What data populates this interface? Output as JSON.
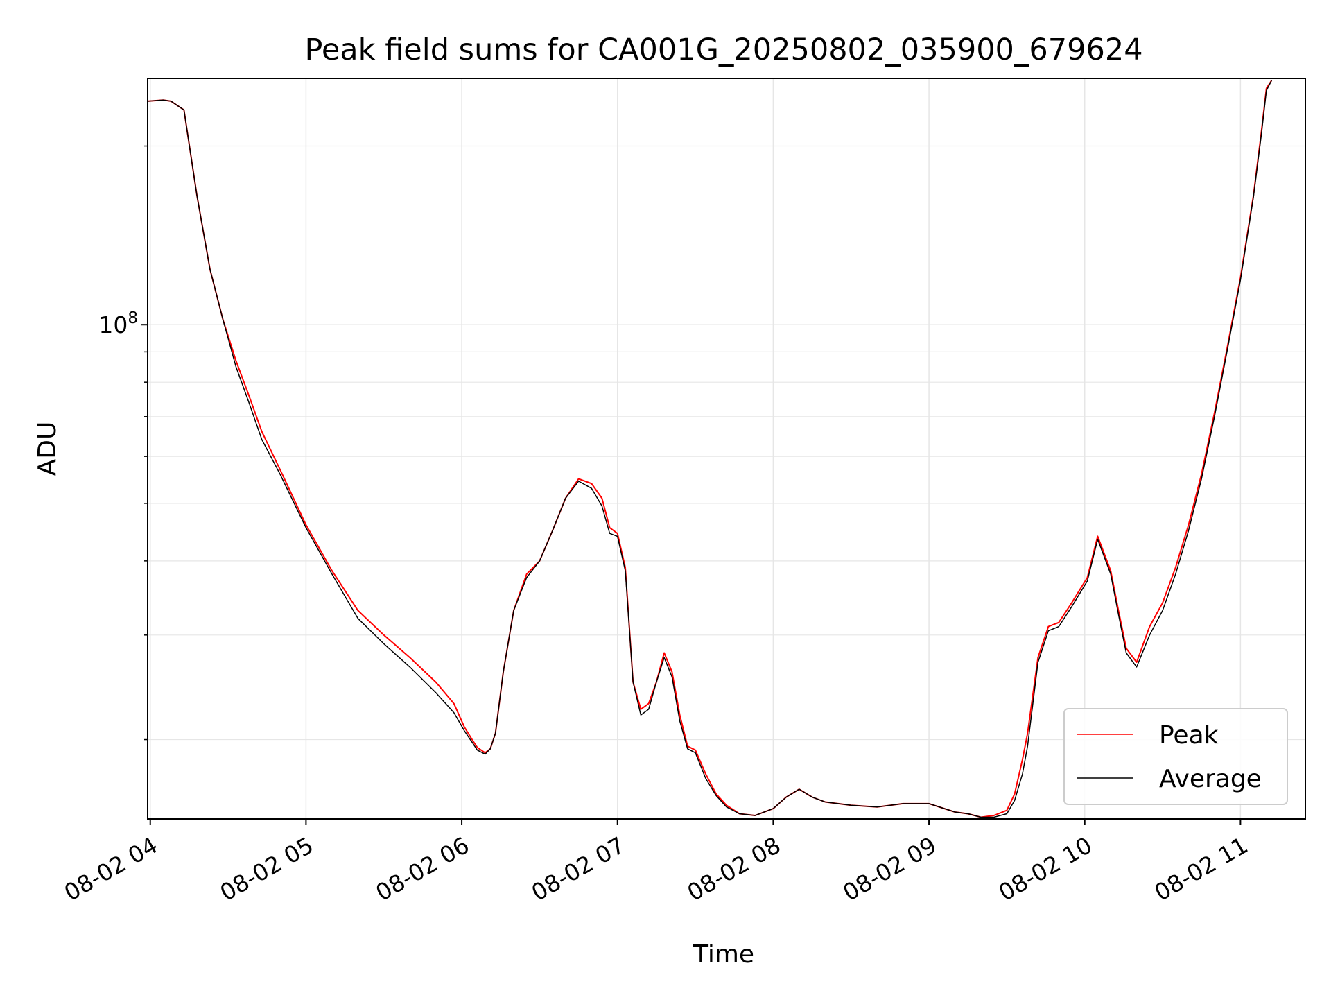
{
  "chart_data": {
    "type": "line",
    "title": "Peak field sums for CA001G_20250802_035900_679624",
    "xlabel": "Time",
    "ylabel": "ADU",
    "x_ticks": [
      "08-02 04",
      "08-02 05",
      "08-02 06",
      "08-02 07",
      "08-02 08",
      "08-02 09",
      "08-02 10",
      "08-02 11"
    ],
    "y_scale": "log",
    "y_ticks": [
      {
        "value": 100000000,
        "base": "10",
        "exp": "8"
      }
    ],
    "xlim": [
      "2025-08-02 03:59",
      "2025-08-02 11:25"
    ],
    "ylim": [
      14700000,
      260000000
    ],
    "grid": true,
    "legend": {
      "position": "lower right"
    },
    "colors": {
      "Peak": "#ff0000",
      "Average": "#000000",
      "grid": "#e6e6e6"
    },
    "series": [
      {
        "name": "Peak",
        "color": "#ff0000",
        "x": [
          "2025-08-02 03:59",
          "2025-08-02 04:05",
          "2025-08-02 04:08",
          "2025-08-02 04:13",
          "2025-08-02 04:18",
          "2025-08-02 04:23",
          "2025-08-02 04:28",
          "2025-08-02 04:33",
          "2025-08-02 04:38",
          "2025-08-02 04:43",
          "2025-08-02 04:50",
          "2025-08-02 05:00",
          "2025-08-02 05:10",
          "2025-08-02 05:20",
          "2025-08-02 05:30",
          "2025-08-02 05:40",
          "2025-08-02 05:50",
          "2025-08-02 05:57",
          "2025-08-02 06:01",
          "2025-08-02 06:04",
          "2025-08-02 06:06",
          "2025-08-02 06:09",
          "2025-08-02 06:11",
          "2025-08-02 06:13",
          "2025-08-02 06:16",
          "2025-08-02 06:20",
          "2025-08-02 06:25",
          "2025-08-02 06:30",
          "2025-08-02 06:35",
          "2025-08-02 06:40",
          "2025-08-02 06:45",
          "2025-08-02 06:50",
          "2025-08-02 06:54",
          "2025-08-02 06:57",
          "2025-08-02 07:00",
          "2025-08-02 07:03",
          "2025-08-02 07:06",
          "2025-08-02 07:09",
          "2025-08-02 07:12",
          "2025-08-02 07:15",
          "2025-08-02 07:18",
          "2025-08-02 07:21",
          "2025-08-02 07:24",
          "2025-08-02 07:27",
          "2025-08-02 07:30",
          "2025-08-02 07:34",
          "2025-08-02 07:38",
          "2025-08-02 07:42",
          "2025-08-02 07:47",
          "2025-08-02 07:53",
          "2025-08-02 08:00",
          "2025-08-02 08:05",
          "2025-08-02 08:10",
          "2025-08-02 08:15",
          "2025-08-02 08:20",
          "2025-08-02 08:30",
          "2025-08-02 08:40",
          "2025-08-02 08:50",
          "2025-08-02 09:00",
          "2025-08-02 09:10",
          "2025-08-02 09:15",
          "2025-08-02 09:20",
          "2025-08-02 09:25",
          "2025-08-02 09:30",
          "2025-08-02 09:33",
          "2025-08-02 09:36",
          "2025-08-02 09:38",
          "2025-08-02 09:42",
          "2025-08-02 09:46",
          "2025-08-02 09:50",
          "2025-08-02 09:55",
          "2025-08-02 10:01",
          "2025-08-02 10:05",
          "2025-08-02 10:10",
          "2025-08-02 10:13",
          "2025-08-02 10:16",
          "2025-08-02 10:20",
          "2025-08-02 10:25",
          "2025-08-02 10:30",
          "2025-08-02 10:35",
          "2025-08-02 10:40",
          "2025-08-02 10:45",
          "2025-08-02 10:50",
          "2025-08-02 10:55",
          "2025-08-02 11:00",
          "2025-08-02 11:05",
          "2025-08-02 11:08",
          "2025-08-02 11:10",
          "2025-08-02 11:12"
        ],
        "y": [
          238000000,
          239000000,
          238000000,
          230000000,
          165000000,
          124000000,
          102000000,
          87000000,
          76000000,
          66000000,
          57000000,
          46000000,
          38500000,
          33000000,
          30000000,
          27500000,
          25000000,
          23000000,
          21000000,
          20000000,
          19400000,
          19000000,
          19300000,
          20500000,
          26000000,
          33000000,
          38000000,
          40000000,
          45000000,
          51000000,
          55000000,
          54000000,
          51000000,
          45500000,
          44500000,
          39000000,
          25000000,
          22500000,
          23000000,
          25000000,
          28000000,
          26000000,
          22000000,
          19500000,
          19200000,
          17500000,
          16200000,
          15500000,
          15000000,
          14900000,
          15300000,
          16000000,
          16500000,
          16000000,
          15700000,
          15500000,
          15400000,
          15600000,
          15600000,
          15100000,
          15000000,
          14800000,
          14900000,
          15200000,
          16200000,
          18500000,
          20500000,
          27500000,
          31000000,
          31500000,
          34000000,
          37500000,
          44000000,
          38500000,
          33000000,
          28500000,
          27000000,
          31000000,
          34000000,
          39000000,
          46000000,
          56000000,
          71000000,
          92000000,
          120000000,
          165000000,
          210000000,
          250000000,
          258000000
        ]
      },
      {
        "name": "Average",
        "color": "#000000",
        "x": [
          "2025-08-02 03:59",
          "2025-08-02 04:05",
          "2025-08-02 04:08",
          "2025-08-02 04:13",
          "2025-08-02 04:18",
          "2025-08-02 04:23",
          "2025-08-02 04:28",
          "2025-08-02 04:33",
          "2025-08-02 04:38",
          "2025-08-02 04:43",
          "2025-08-02 04:50",
          "2025-08-02 05:00",
          "2025-08-02 05:10",
          "2025-08-02 05:20",
          "2025-08-02 05:30",
          "2025-08-02 05:40",
          "2025-08-02 05:50",
          "2025-08-02 05:57",
          "2025-08-02 06:01",
          "2025-08-02 06:04",
          "2025-08-02 06:06",
          "2025-08-02 06:09",
          "2025-08-02 06:11",
          "2025-08-02 06:13",
          "2025-08-02 06:16",
          "2025-08-02 06:20",
          "2025-08-02 06:25",
          "2025-08-02 06:30",
          "2025-08-02 06:35",
          "2025-08-02 06:40",
          "2025-08-02 06:45",
          "2025-08-02 06:50",
          "2025-08-02 06:54",
          "2025-08-02 06:57",
          "2025-08-02 07:00",
          "2025-08-02 07:03",
          "2025-08-02 07:06",
          "2025-08-02 07:09",
          "2025-08-02 07:12",
          "2025-08-02 07:15",
          "2025-08-02 07:18",
          "2025-08-02 07:21",
          "2025-08-02 07:24",
          "2025-08-02 07:27",
          "2025-08-02 07:30",
          "2025-08-02 07:34",
          "2025-08-02 07:38",
          "2025-08-02 07:42",
          "2025-08-02 07:47",
          "2025-08-02 07:53",
          "2025-08-02 08:00",
          "2025-08-02 08:05",
          "2025-08-02 08:10",
          "2025-08-02 08:15",
          "2025-08-02 08:20",
          "2025-08-02 08:30",
          "2025-08-02 08:40",
          "2025-08-02 08:50",
          "2025-08-02 09:00",
          "2025-08-02 09:10",
          "2025-08-02 09:15",
          "2025-08-02 09:20",
          "2025-08-02 09:25",
          "2025-08-02 09:30",
          "2025-08-02 09:33",
          "2025-08-02 09:36",
          "2025-08-02 09:38",
          "2025-08-02 09:42",
          "2025-08-02 09:46",
          "2025-08-02 09:50",
          "2025-08-02 09:55",
          "2025-08-02 10:01",
          "2025-08-02 10:05",
          "2025-08-02 10:10",
          "2025-08-02 10:13",
          "2025-08-02 10:16",
          "2025-08-02 10:20",
          "2025-08-02 10:25",
          "2025-08-02 10:30",
          "2025-08-02 10:35",
          "2025-08-02 10:40",
          "2025-08-02 10:45",
          "2025-08-02 10:50",
          "2025-08-02 10:55",
          "2025-08-02 11:00",
          "2025-08-02 11:05",
          "2025-08-02 11:08",
          "2025-08-02 11:10",
          "2025-08-02 11:12"
        ],
        "y": [
          238000000,
          239000000,
          238000000,
          230000000,
          165000000,
          124000000,
          102000000,
          85000000,
          74000000,
          64000000,
          56000000,
          45500000,
          38000000,
          32000000,
          29000000,
          26500000,
          24000000,
          22200000,
          20700000,
          19800000,
          19200000,
          18900000,
          19300000,
          20500000,
          26000000,
          33000000,
          37500000,
          40000000,
          45000000,
          51000000,
          54500000,
          53000000,
          49500000,
          44500000,
          44000000,
          38500000,
          25000000,
          22000000,
          22500000,
          25000000,
          27500000,
          25500000,
          21500000,
          19300000,
          19000000,
          17200000,
          16100000,
          15400000,
          15000000,
          14900000,
          15300000,
          16000000,
          16500000,
          16000000,
          15700000,
          15500000,
          15400000,
          15600000,
          15600000,
          15100000,
          15000000,
          14800000,
          14800000,
          15000000,
          15800000,
          17500000,
          19500000,
          27000000,
          30500000,
          31000000,
          33500000,
          37000000,
          43500000,
          38000000,
          32500000,
          28000000,
          26500000,
          30000000,
          33000000,
          38000000,
          45000000,
          55000000,
          70000000,
          91000000,
          119000000,
          164000000,
          208000000,
          248000000,
          258000000
        ]
      }
    ]
  }
}
